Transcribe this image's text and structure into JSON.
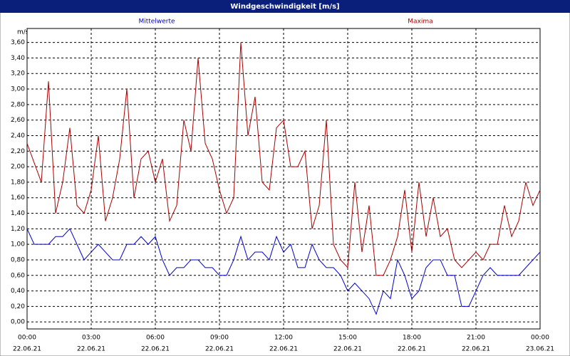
{
  "chart_data": {
    "type": "line",
    "title": "Windgeschwindigkeit [m/s]",
    "y_label": "m/s",
    "x": [
      0,
      20,
      40,
      60,
      80,
      100,
      120,
      140,
      160,
      180,
      200,
      220,
      240,
      260,
      280,
      300,
      320,
      340,
      360,
      380,
      400,
      420,
      440,
      460,
      480,
      500,
      520,
      540,
      560,
      580,
      600,
      620,
      640,
      660,
      680,
      700,
      720,
      740,
      760,
      780,
      800,
      820,
      840,
      860,
      880,
      900,
      920,
      940,
      960,
      980,
      1000,
      1020,
      1040,
      1060,
      1080,
      1100,
      1120,
      1140,
      1160,
      1180,
      1200,
      1220,
      1240,
      1260,
      1280,
      1300,
      1320,
      1340,
      1360,
      1380,
      1400,
      1420,
      1440
    ],
    "xlim": [
      0,
      1440
    ],
    "xticks": [
      {
        "value": 0,
        "label": "00:00"
      },
      {
        "value": 180,
        "label": "03:00"
      },
      {
        "value": 360,
        "label": "06:00"
      },
      {
        "value": 540,
        "label": "09:00"
      },
      {
        "value": 720,
        "label": "12:00"
      },
      {
        "value": 900,
        "label": "15:00"
      },
      {
        "value": 1080,
        "label": "18:00"
      },
      {
        "value": 1260,
        "label": "21:00"
      },
      {
        "value": 1440,
        "label": "00:00"
      }
    ],
    "xtick_dates": [
      "22.06.21",
      "22.06.21",
      "22.06.21",
      "22.06.21",
      "22.06.21",
      "22.06.21",
      "22.06.21",
      "22.06.21",
      "23.06.21"
    ],
    "ylim": [
      -0.09,
      3.78
    ],
    "yticks": [
      {
        "value": 0,
        "label": "0,00"
      },
      {
        "value": 0.2,
        "label": "0,20"
      },
      {
        "value": 0.4,
        "label": "0,40"
      },
      {
        "value": 0.6,
        "label": "0,60"
      },
      {
        "value": 0.8,
        "label": "0,80"
      },
      {
        "value": 1,
        "label": "1,00"
      },
      {
        "value": 1.2,
        "label": "1,20"
      },
      {
        "value": 1.4,
        "label": "1,40"
      },
      {
        "value": 1.6,
        "label": "1,60"
      },
      {
        "value": 1.8,
        "label": "1,80"
      },
      {
        "value": 2,
        "label": "2,00"
      },
      {
        "value": 2.2,
        "label": "2,20"
      },
      {
        "value": 2.4,
        "label": "2,40"
      },
      {
        "value": 2.6,
        "label": "2,60"
      },
      {
        "value": 2.8,
        "label": "2,80"
      },
      {
        "value": 3,
        "label": "3,00"
      },
      {
        "value": 3.2,
        "label": "3,20"
      },
      {
        "value": 3.4,
        "label": "3,40"
      },
      {
        "value": 3.6,
        "label": "3,60"
      }
    ],
    "grid": true,
    "series": [
      {
        "name": "Mittelwerte",
        "color": "#0000cc",
        "values": [
          1.2,
          1.0,
          1.0,
          1.0,
          1.1,
          1.1,
          1.2,
          1.0,
          0.8,
          0.9,
          1.0,
          0.9,
          0.8,
          0.8,
          1.0,
          1.0,
          1.1,
          1.0,
          1.1,
          0.8,
          0.6,
          0.7,
          0.7,
          0.8,
          0.8,
          0.7,
          0.7,
          0.6,
          0.6,
          0.8,
          1.1,
          0.8,
          0.9,
          0.9,
          0.8,
          1.1,
          0.9,
          1.0,
          0.7,
          0.7,
          1.0,
          0.8,
          0.7,
          0.7,
          0.6,
          0.4,
          0.5,
          0.4,
          0.3,
          0.1,
          0.4,
          0.3,
          0.8,
          0.6,
          0.3,
          0.4,
          0.7,
          0.8,
          0.8,
          0.6,
          0.6,
          0.2,
          0.2,
          0.4,
          0.6,
          0.7,
          0.6,
          0.6,
          0.6,
          0.6,
          0.7,
          0.8,
          0.9
        ]
      },
      {
        "name": "Maxima",
        "color": "#aa0000",
        "values": [
          2.3,
          2.05,
          1.8,
          3.1,
          1.4,
          1.8,
          2.5,
          1.5,
          1.4,
          1.7,
          2.4,
          1.3,
          1.6,
          2.1,
          3.0,
          1.6,
          2.1,
          2.2,
          1.8,
          2.1,
          1.3,
          1.5,
          2.6,
          2.2,
          3.4,
          2.3,
          2.1,
          1.7,
          1.4,
          1.6,
          3.6,
          2.4,
          2.9,
          1.8,
          1.7,
          2.5,
          2.6,
          2.0,
          2.0,
          2.2,
          1.2,
          1.5,
          2.6,
          1.0,
          0.8,
          0.7,
          1.8,
          0.9,
          1.5,
          0.6,
          0.6,
          0.8,
          1.1,
          1.7,
          0.9,
          1.8,
          1.1,
          1.6,
          1.1,
          1.2,
          0.8,
          0.7,
          0.8,
          0.9,
          0.8,
          1.0,
          1.0,
          1.5,
          1.1,
          1.3,
          1.8,
          1.5,
          1.7
        ]
      }
    ]
  }
}
